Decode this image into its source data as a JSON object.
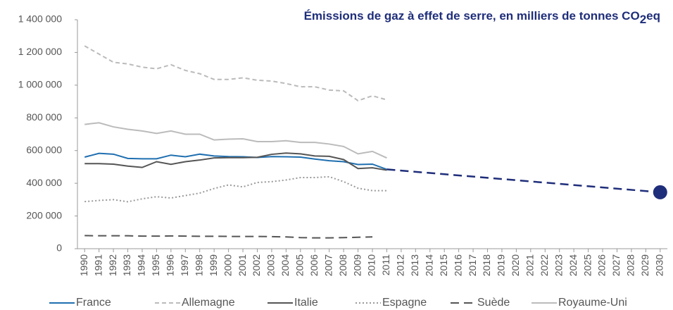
{
  "chart_data": {
    "type": "line",
    "title": [
      "Émissions de gaz à effet de serre, en milliers de tonnes CO",
      "2",
      "eq"
    ],
    "x": [
      1990,
      1991,
      1992,
      1993,
      1994,
      1995,
      1996,
      1997,
      1998,
      1999,
      2000,
      2001,
      2002,
      2003,
      2004,
      2005,
      2006,
      2007,
      2008,
      2009,
      2010,
      2011
    ],
    "series": [
      {
        "name": "France",
        "color": "#1f6fb0",
        "dash": "solid",
        "values": [
          560000,
          583000,
          578000,
          552000,
          550000,
          550000,
          572000,
          562000,
          578000,
          567000,
          563000,
          562000,
          558000,
          563000,
          562000,
          560000,
          548000,
          538000,
          532000,
          515000,
          517000,
          485000
        ]
      },
      {
        "name": "Allemagne",
        "color": "#bbbbbb",
        "dash": "dashed",
        "values": [
          1240000,
          1190000,
          1140000,
          1130000,
          1110000,
          1100000,
          1125000,
          1090000,
          1070000,
          1035000,
          1035000,
          1045000,
          1030000,
          1025000,
          1010000,
          990000,
          990000,
          970000,
          965000,
          905000,
          935000,
          910000
        ]
      },
      {
        "name": "Italie",
        "color": "#555555",
        "dash": "solid",
        "values": [
          520000,
          520000,
          517000,
          505000,
          497000,
          532000,
          516000,
          532000,
          542000,
          555000,
          557000,
          557000,
          559000,
          577000,
          585000,
          580000,
          567000,
          565000,
          545000,
          490000,
          495000,
          480000
        ]
      },
      {
        "name": "Espagne",
        "color": "#999999",
        "dash": "dotted",
        "values": [
          288000,
          295000,
          300000,
          287000,
          305000,
          318000,
          310000,
          325000,
          340000,
          368000,
          390000,
          378000,
          405000,
          410000,
          420000,
          435000,
          435000,
          440000,
          410000,
          370000,
          355000,
          355000
        ]
      },
      {
        "name": "Suède",
        "color": "#555555",
        "dash": "longdash",
        "values": [
          80000,
          79000,
          79000,
          79000,
          77000,
          77000,
          78000,
          77000,
          76000,
          76000,
          75000,
          75000,
          75000,
          74000,
          72000,
          68000,
          66000,
          66000,
          68000,
          70000,
          72000,
          null
        ]
      },
      {
        "name": "Royaume-Uni",
        "color": "#bbbbbb",
        "dash": "solid",
        "values": [
          760000,
          770000,
          745000,
          730000,
          720000,
          705000,
          720000,
          700000,
          700000,
          665000,
          670000,
          672000,
          655000,
          655000,
          660000,
          650000,
          650000,
          640000,
          625000,
          580000,
          595000,
          555000
        ]
      },
      {
        "color": "#1f2e7a",
        "dash": "longdash",
        "x": [
          2011,
          2030
        ],
        "values": [
          485000,
          345000
        ],
        "end_marker": true
      }
    ],
    "xlim": [
      1989.5,
      2030.5
    ],
    "xticks": [
      1990,
      1991,
      1992,
      1993,
      1994,
      1995,
      1996,
      1997,
      1998,
      1999,
      2000,
      2001,
      2002,
      2003,
      2004,
      2005,
      2006,
      2007,
      2008,
      2009,
      2010,
      2011,
      2012,
      2013,
      2014,
      2015,
      2016,
      2017,
      2018,
      2019,
      2020,
      2021,
      2022,
      2023,
      2024,
      2025,
      2026,
      2027,
      2028,
      2029,
      2030
    ],
    "ylim": [
      0,
      1400000
    ],
    "yticks": [
      0,
      {
        "value": 200000,
        "label": "200 000"
      },
      {
        "value": 400000,
        "label": "400 000"
      },
      {
        "value": 600000,
        "label": "600 000"
      },
      {
        "value": 800000,
        "label": "800 000"
      },
      {
        "value": 1000000,
        "label": "1 000 000"
      },
      {
        "value": 1200000,
        "label": "1 200 000"
      },
      {
        "value": 1400000,
        "label": "1 400 000"
      }
    ],
    "grid": false,
    "legend": "bottom"
  }
}
